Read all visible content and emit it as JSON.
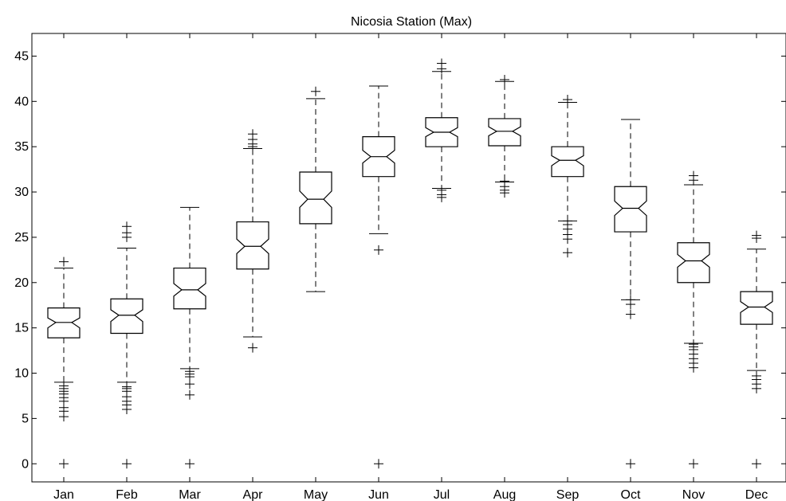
{
  "chart_data": {
    "type": "box",
    "title": "Nicosia Station (Max)",
    "xlabel": "",
    "ylabel": "",
    "ylim": [
      -2,
      47.5
    ],
    "yticks": [
      0,
      5,
      10,
      15,
      20,
      25,
      30,
      35,
      40,
      45
    ],
    "notched": true,
    "grid": false,
    "categories": [
      "Jan",
      "Feb",
      "Mar",
      "Apr",
      "May",
      "Jun",
      "Jul",
      "Aug",
      "Sep",
      "Oct",
      "Nov",
      "Dec"
    ],
    "boxes": [
      {
        "label": "Jan",
        "whisker_low": 9.0,
        "q1": 13.9,
        "median": 15.6,
        "q3": 17.2,
        "whisker_high": 21.6,
        "notch": [
          15.0,
          16.1
        ],
        "outliers": [
          0,
          5.2,
          5.8,
          6.2,
          6.9,
          7.3,
          7.7,
          8.0,
          8.3,
          8.6,
          22.3
        ]
      },
      {
        "label": "Feb",
        "whisker_low": 9.0,
        "q1": 14.4,
        "median": 16.4,
        "q3": 18.2,
        "whisker_high": 23.8,
        "notch": [
          15.7,
          17.0
        ],
        "outliers": [
          0,
          6.0,
          6.5,
          6.9,
          7.4,
          8.0,
          8.3,
          8.5,
          25.0,
          25.5,
          26.2
        ]
      },
      {
        "label": "Mar",
        "whisker_low": 10.5,
        "q1": 17.1,
        "median": 19.2,
        "q3": 21.6,
        "whisker_high": 28.3,
        "notch": [
          18.5,
          19.9
        ],
        "outliers": [
          0,
          7.6,
          8.8,
          9.6,
          9.9,
          10.2
        ]
      },
      {
        "label": "Apr",
        "whisker_low": 14.0,
        "q1": 21.5,
        "median": 24.0,
        "q3": 26.7,
        "whisker_high": 34.8,
        "notch": [
          23.2,
          24.8
        ],
        "outliers": [
          12.8,
          35.0,
          35.3,
          35.8,
          36.4
        ]
      },
      {
        "label": "May",
        "whisker_low": 19.0,
        "q1": 26.5,
        "median": 29.2,
        "q3": 32.2,
        "whisker_high": 40.3,
        "notch": [
          28.3,
          30.1
        ],
        "outliers": [
          41.1
        ]
      },
      {
        "label": "Jun",
        "whisker_low": 25.4,
        "q1": 31.7,
        "median": 33.9,
        "q3": 36.1,
        "whisker_high": 41.7,
        "notch": [
          33.2,
          34.6
        ],
        "outliers": [
          0,
          23.6
        ]
      },
      {
        "label": "Jul",
        "whisker_low": 30.4,
        "q1": 35.0,
        "median": 36.6,
        "q3": 38.2,
        "whisker_high": 43.3,
        "notch": [
          36.1,
          37.1
        ],
        "outliers": [
          29.4,
          29.7,
          30.2,
          43.6,
          44.2
        ]
      },
      {
        "label": "Aug",
        "whisker_low": 31.1,
        "q1": 35.1,
        "median": 36.7,
        "q3": 38.1,
        "whisker_high": 42.2,
        "notch": [
          36.2,
          37.2
        ],
        "outliers": [
          29.9,
          30.2,
          30.6,
          31.2,
          42.4
        ]
      },
      {
        "label": "Sep",
        "whisker_low": 26.8,
        "q1": 31.7,
        "median": 33.5,
        "q3": 35.0,
        "whisker_high": 39.9,
        "notch": [
          32.9,
          34.0
        ],
        "outliers": [
          23.3,
          24.8,
          25.3,
          25.9,
          26.4,
          26.8,
          40.2
        ]
      },
      {
        "label": "Oct",
        "whisker_low": 18.1,
        "q1": 25.6,
        "median": 28.2,
        "q3": 30.6,
        "whisker_high": 38.0,
        "notch": [
          27.4,
          29.0
        ],
        "outliers": [
          0,
          16.5,
          17.6,
          18.1
        ]
      },
      {
        "label": "Nov",
        "whisker_low": 13.3,
        "q1": 20.0,
        "median": 22.4,
        "q3": 24.4,
        "whisker_high": 30.8,
        "notch": [
          21.7,
          23.1
        ],
        "outliers": [
          0,
          10.6,
          11.1,
          11.6,
          12.1,
          12.6,
          12.9,
          13.2,
          31.3,
          31.8
        ]
      },
      {
        "label": "Dec",
        "whisker_low": 10.3,
        "q1": 15.4,
        "median": 17.3,
        "q3": 19.0,
        "whisker_high": 23.7,
        "notch": [
          16.7,
          17.9
        ],
        "outliers": [
          0,
          8.3,
          8.8,
          9.3,
          9.7,
          24.9,
          25.2
        ]
      }
    ]
  }
}
